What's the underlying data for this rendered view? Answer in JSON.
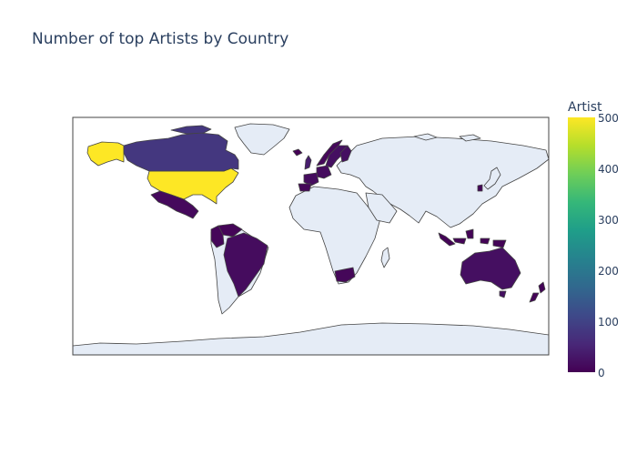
{
  "title": "Number of top Artists by Country",
  "colorbar": {
    "title": "Artist",
    "ticks": [
      "500",
      "400",
      "300",
      "200",
      "100",
      "0"
    ],
    "min": 0,
    "max": 500
  },
  "colors": {
    "land": "#e5ecf6",
    "coast": "#444444",
    "frame": "#444444",
    "scale": [
      "#440154",
      "#482878",
      "#3e4989",
      "#31688e",
      "#26828e",
      "#1f9e89",
      "#35b779",
      "#6ece58",
      "#b5de2b",
      "#fde725"
    ]
  },
  "chart_data": {
    "type": "choropleth",
    "title": "Number of top Artists by Country",
    "colorbar_title": "Artist",
    "color_range": [
      0,
      500
    ],
    "colorscale": "Viridis",
    "projection": "equirectangular",
    "countries": [
      {
        "name": "United States",
        "value": 500
      },
      {
        "name": "Canada",
        "value": 80
      },
      {
        "name": "Mexico",
        "value": 12
      },
      {
        "name": "Brazil",
        "value": 15
      },
      {
        "name": "Venezuela",
        "value": 5
      },
      {
        "name": "Colombia",
        "value": 8
      },
      {
        "name": "United Kingdom",
        "value": 40
      },
      {
        "name": "Sweden",
        "value": 20
      },
      {
        "name": "Norway",
        "value": 10
      },
      {
        "name": "Iceland",
        "value": 3
      },
      {
        "name": "Germany",
        "value": 15
      },
      {
        "name": "France",
        "value": 15
      },
      {
        "name": "Spain",
        "value": 8
      },
      {
        "name": "South Africa",
        "value": 8
      },
      {
        "name": "South Korea",
        "value": 6
      },
      {
        "name": "Indonesia",
        "value": 4
      },
      {
        "name": "Australia",
        "value": 20
      },
      {
        "name": "New Zealand",
        "value": 4
      }
    ]
  }
}
